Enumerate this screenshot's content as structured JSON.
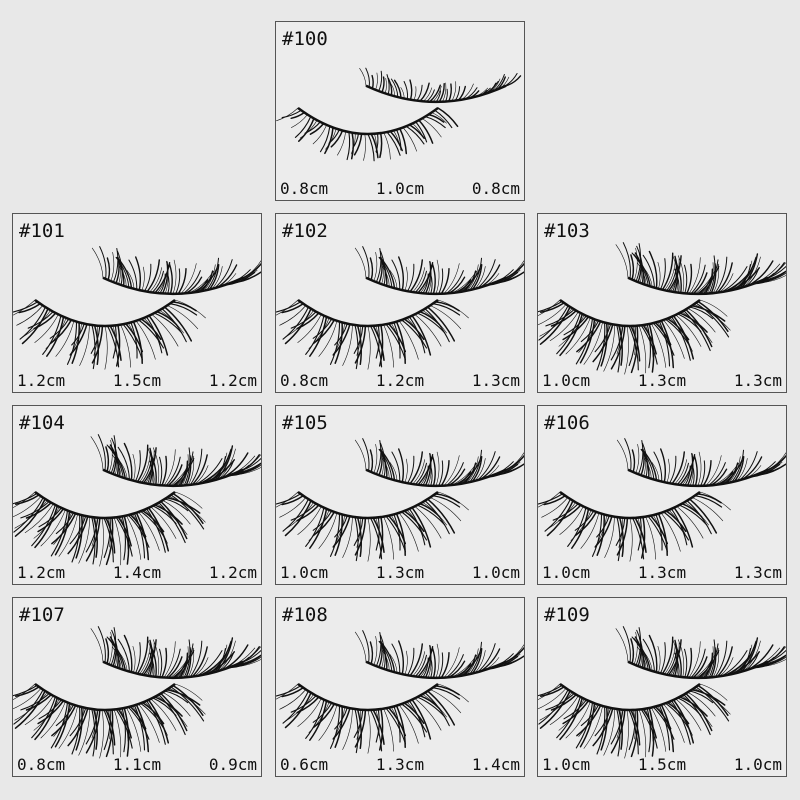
{
  "products": [
    {
      "code": "#100",
      "sizes": [
        "0.8cm",
        "1.0cm",
        "0.8cm"
      ],
      "style": "wispy-light"
    },
    {
      "code": "#101",
      "sizes": [
        "1.2cm",
        "1.5cm",
        "1.2cm"
      ],
      "style": "spiky-clustered"
    },
    {
      "code": "#102",
      "sizes": [
        "0.8cm",
        "1.2cm",
        "1.3cm"
      ],
      "style": "wispy-flared"
    },
    {
      "code": "#103",
      "sizes": [
        "1.0cm",
        "1.3cm",
        "1.3cm"
      ],
      "style": "dense-dramatic"
    },
    {
      "code": "#104",
      "sizes": [
        "1.2cm",
        "1.4cm",
        "1.2cm"
      ],
      "style": "fluffy-volume"
    },
    {
      "code": "#105",
      "sizes": [
        "1.0cm",
        "1.3cm",
        "1.0cm"
      ],
      "style": "spiky-clustered"
    },
    {
      "code": "#106",
      "sizes": [
        "1.0cm",
        "1.3cm",
        "1.3cm"
      ],
      "style": "spiky-wide"
    },
    {
      "code": "#107",
      "sizes": [
        "0.8cm",
        "1.1cm",
        "0.9cm"
      ],
      "style": "fluffy-dense"
    },
    {
      "code": "#108",
      "sizes": [
        "0.6cm",
        "1.3cm",
        "1.4cm"
      ],
      "style": "wispy-cat-eye"
    },
    {
      "code": "#109",
      "sizes": [
        "1.0cm",
        "1.5cm",
        "1.0cm"
      ],
      "style": "dense-dramatic"
    }
  ],
  "colors": {
    "background": "#e8e8e8",
    "tile": "#ececec",
    "border": "#555555",
    "lash": "#111111"
  }
}
